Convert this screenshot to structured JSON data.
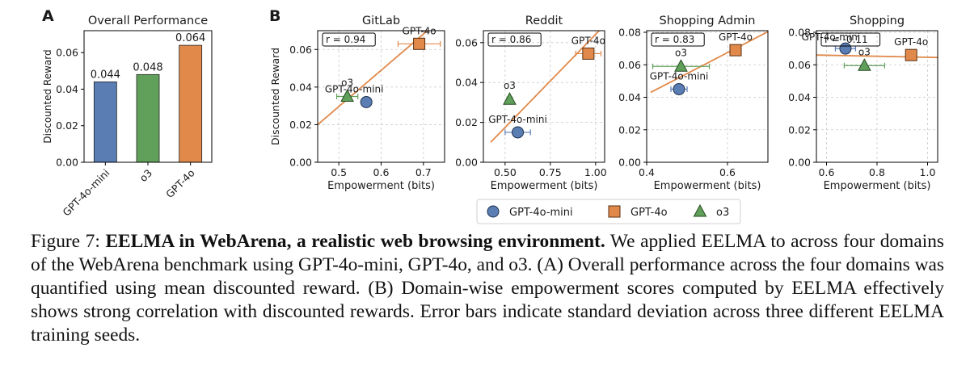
{
  "panels": {
    "a": "A",
    "b": "B"
  },
  "chart_data": [
    {
      "type": "bar",
      "title": "Overall Performance",
      "categories": [
        "GPT-4o-mini",
        "o3",
        "GPT-4o"
      ],
      "values": [
        0.044,
        0.048,
        0.064
      ],
      "data_labels": [
        "0.044",
        "0.048",
        "0.064"
      ],
      "colors": [
        "#5a7db3",
        "#61a05a",
        "#e0894a"
      ],
      "ylabel": "Discounted Reward",
      "ylim": [
        0,
        0.072
      ],
      "yticks": [
        0,
        0.02,
        0.04,
        0.06
      ],
      "ytick_labels": [
        "0.00",
        "0.02",
        "0.04",
        "0.06"
      ]
    },
    {
      "type": "scatter",
      "title": "GitLab",
      "xlabel": "Empowerment (bits)",
      "ylabel": "Discounted Reward",
      "xlim": [
        0.45,
        0.75
      ],
      "ylim": [
        0,
        0.07
      ],
      "xticks": [
        0.5,
        0.6,
        0.7
      ],
      "xtick_labels": [
        "0.5",
        "0.6",
        "0.7"
      ],
      "yticks": [
        0,
        0.02,
        0.04,
        0.06
      ],
      "ytick_labels": [
        "0.00",
        "0.02",
        "0.04",
        "0.06"
      ],
      "r_label": "r = 0.94",
      "fit": [
        [
          0.45,
          0.02
        ],
        [
          0.73,
          0.074
        ]
      ],
      "points": [
        {
          "model": "GPT-4o-mini",
          "label": "GPT-4o-mini",
          "x": 0.565,
          "y": 0.032,
          "xerr": 0
        },
        {
          "model": "GPT-4o",
          "label": "GPT-4o",
          "x": 0.69,
          "y": 0.063,
          "xerr": 0.05
        },
        {
          "model": "o3",
          "label": "o3",
          "x": 0.52,
          "y": 0.035,
          "xerr": 0.025
        }
      ]
    },
    {
      "type": "scatter",
      "title": "Reddit",
      "xlabel": "Empowerment (bits)",
      "xlim": [
        0.38,
        1.05
      ],
      "ylim": [
        0,
        0.066
      ],
      "xticks": [
        0.5,
        0.75,
        1.0
      ],
      "xtick_labels": [
        "0.50",
        "0.75",
        "1.00"
      ],
      "yticks": [
        0,
        0.02,
        0.04,
        0.06
      ],
      "ytick_labels": [
        "0.00",
        "0.02",
        "0.04",
        "0.06"
      ],
      "r_label": "r = 0.86",
      "fit": [
        [
          0.42,
          0.01
        ],
        [
          1.02,
          0.066
        ]
      ],
      "points": [
        {
          "model": "GPT-4o-mini",
          "label": "GPT-4o-mini",
          "x": 0.57,
          "y": 0.015,
          "xerr": 0.07
        },
        {
          "model": "GPT-4o",
          "label": "GPT-4o",
          "x": 0.96,
          "y": 0.0545,
          "xerr": 0.07
        },
        {
          "model": "o3",
          "label": "o3",
          "x": 0.525,
          "y": 0.0315,
          "xerr": 0.015
        }
      ]
    },
    {
      "type": "scatter",
      "title": "Shopping Admin",
      "xlabel": "Empowerment (bits)",
      "xlim": [
        0.4,
        0.7
      ],
      "ylim": [
        0,
        0.081
      ],
      "xticks": [
        0.4,
        0.6
      ],
      "xtick_labels": [
        "0.4",
        "0.6"
      ],
      "yticks": [
        0,
        0.02,
        0.04,
        0.06,
        0.08
      ],
      "ytick_labels": [
        "0.00",
        "0.02",
        "0.04",
        "0.06",
        "0.08"
      ],
      "r_label": "r = 0.83",
      "fit": [
        [
          0.41,
          0.043
        ],
        [
          0.705,
          0.081
        ]
      ],
      "points": [
        {
          "model": "GPT-4o-mini",
          "label": "GPT-4o-mini",
          "x": 0.48,
          "y": 0.045,
          "xerr": 0.02
        },
        {
          "model": "GPT-4o",
          "label": "GPT-4o",
          "x": 0.62,
          "y": 0.069,
          "xerr": 0
        },
        {
          "model": "o3",
          "label": "o3",
          "x": 0.485,
          "y": 0.059,
          "xerr": 0.07
        }
      ]
    },
    {
      "type": "scatter",
      "title": "Shopping",
      "xlabel": "Empowerment (bits)",
      "xlim": [
        0.56,
        1.04
      ],
      "ylim": [
        0,
        0.081
      ],
      "xticks": [
        0.6,
        0.8,
        1.0
      ],
      "xtick_labels": [
        "0.6",
        "0.8",
        "1.0"
      ],
      "yticks": [
        0,
        0.02,
        0.04,
        0.06,
        0.08
      ],
      "ytick_labels": [
        "0.00",
        "0.02",
        "0.04",
        "0.06",
        "0.08"
      ],
      "r_label": "r = -0.11",
      "fit": [
        [
          0.56,
          0.066
        ],
        [
          1.04,
          0.0645
        ]
      ],
      "points": [
        {
          "model": "GPT-4o-mini",
          "label": "GPT-4o-mini",
          "x": 0.675,
          "y": 0.07,
          "xerr": 0.04
        },
        {
          "model": "GPT-4o",
          "label": "GPT-4o",
          "x": 0.935,
          "y": 0.066,
          "xerr": 0.02
        },
        {
          "model": "o3",
          "label": "o3",
          "x": 0.75,
          "y": 0.0595,
          "xerr": 0.08
        }
      ]
    }
  ],
  "legend": {
    "items": [
      {
        "model": "GPT-4o-mini",
        "label": "GPT-4o-mini",
        "marker": "circle"
      },
      {
        "model": "GPT-4o",
        "label": "GPT-4o",
        "marker": "square"
      },
      {
        "model": "o3",
        "label": "o3",
        "marker": "triangle"
      }
    ]
  },
  "model_colors": {
    "GPT-4o-mini": {
      "fill": "#5a7db3",
      "stroke": "#1f3350",
      "err": "#5a7db3"
    },
    "GPT-4o": {
      "fill": "#e0894a",
      "stroke": "#5a2f10",
      "err": "#e0894a"
    },
    "o3": {
      "fill": "#61a05a",
      "stroke": "#244a20",
      "err": "#61a05a"
    }
  },
  "fit_color": "#e0894a",
  "caption": {
    "label": "Figure 7: ",
    "bold": "EELMA in WebArena, a realistic web browsing environment.",
    "text": " We applied EELMA to across four domains of the WebArena benchmark using GPT-4o-mini, GPT-4o, and o3. (A) Overall performance across the four domains was quantified using mean discounted reward. (B) Domain-wise empowerment scores computed by EELMA effectively shows strong correlation with discounted rewards. Error bars indicate standard deviation across three different EELMA training seeds."
  }
}
